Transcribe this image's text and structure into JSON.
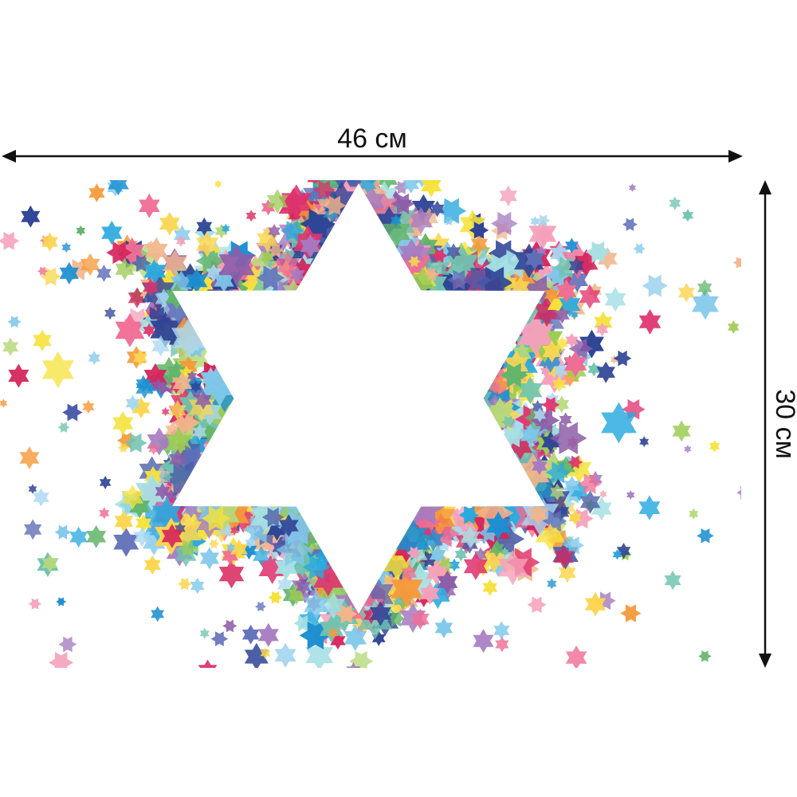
{
  "product": {
    "width_label": "46 см",
    "height_label": "30 см"
  },
  "colors": {
    "background": "#ffffff",
    "arrow": "#111111",
    "palette": [
      "#4a5ba8",
      "#5f6fb8",
      "#2f4596",
      "#e0336e",
      "#d6245c",
      "#f06d95",
      "#f5a0bb",
      "#a8d8f0",
      "#7ec7ea",
      "#2aa9de",
      "#1c8fd0",
      "#62b56a",
      "#9ccc55",
      "#b6d97a",
      "#f6e23a",
      "#fbd650",
      "#f59a3a",
      "#f2b58a",
      "#8d5da8",
      "#a57bc0",
      "#6fc3b0",
      "#a6e0e4"
    ]
  },
  "icons": {
    "star": "six-pointed-star-icon",
    "arrow": "double-arrow-icon"
  }
}
